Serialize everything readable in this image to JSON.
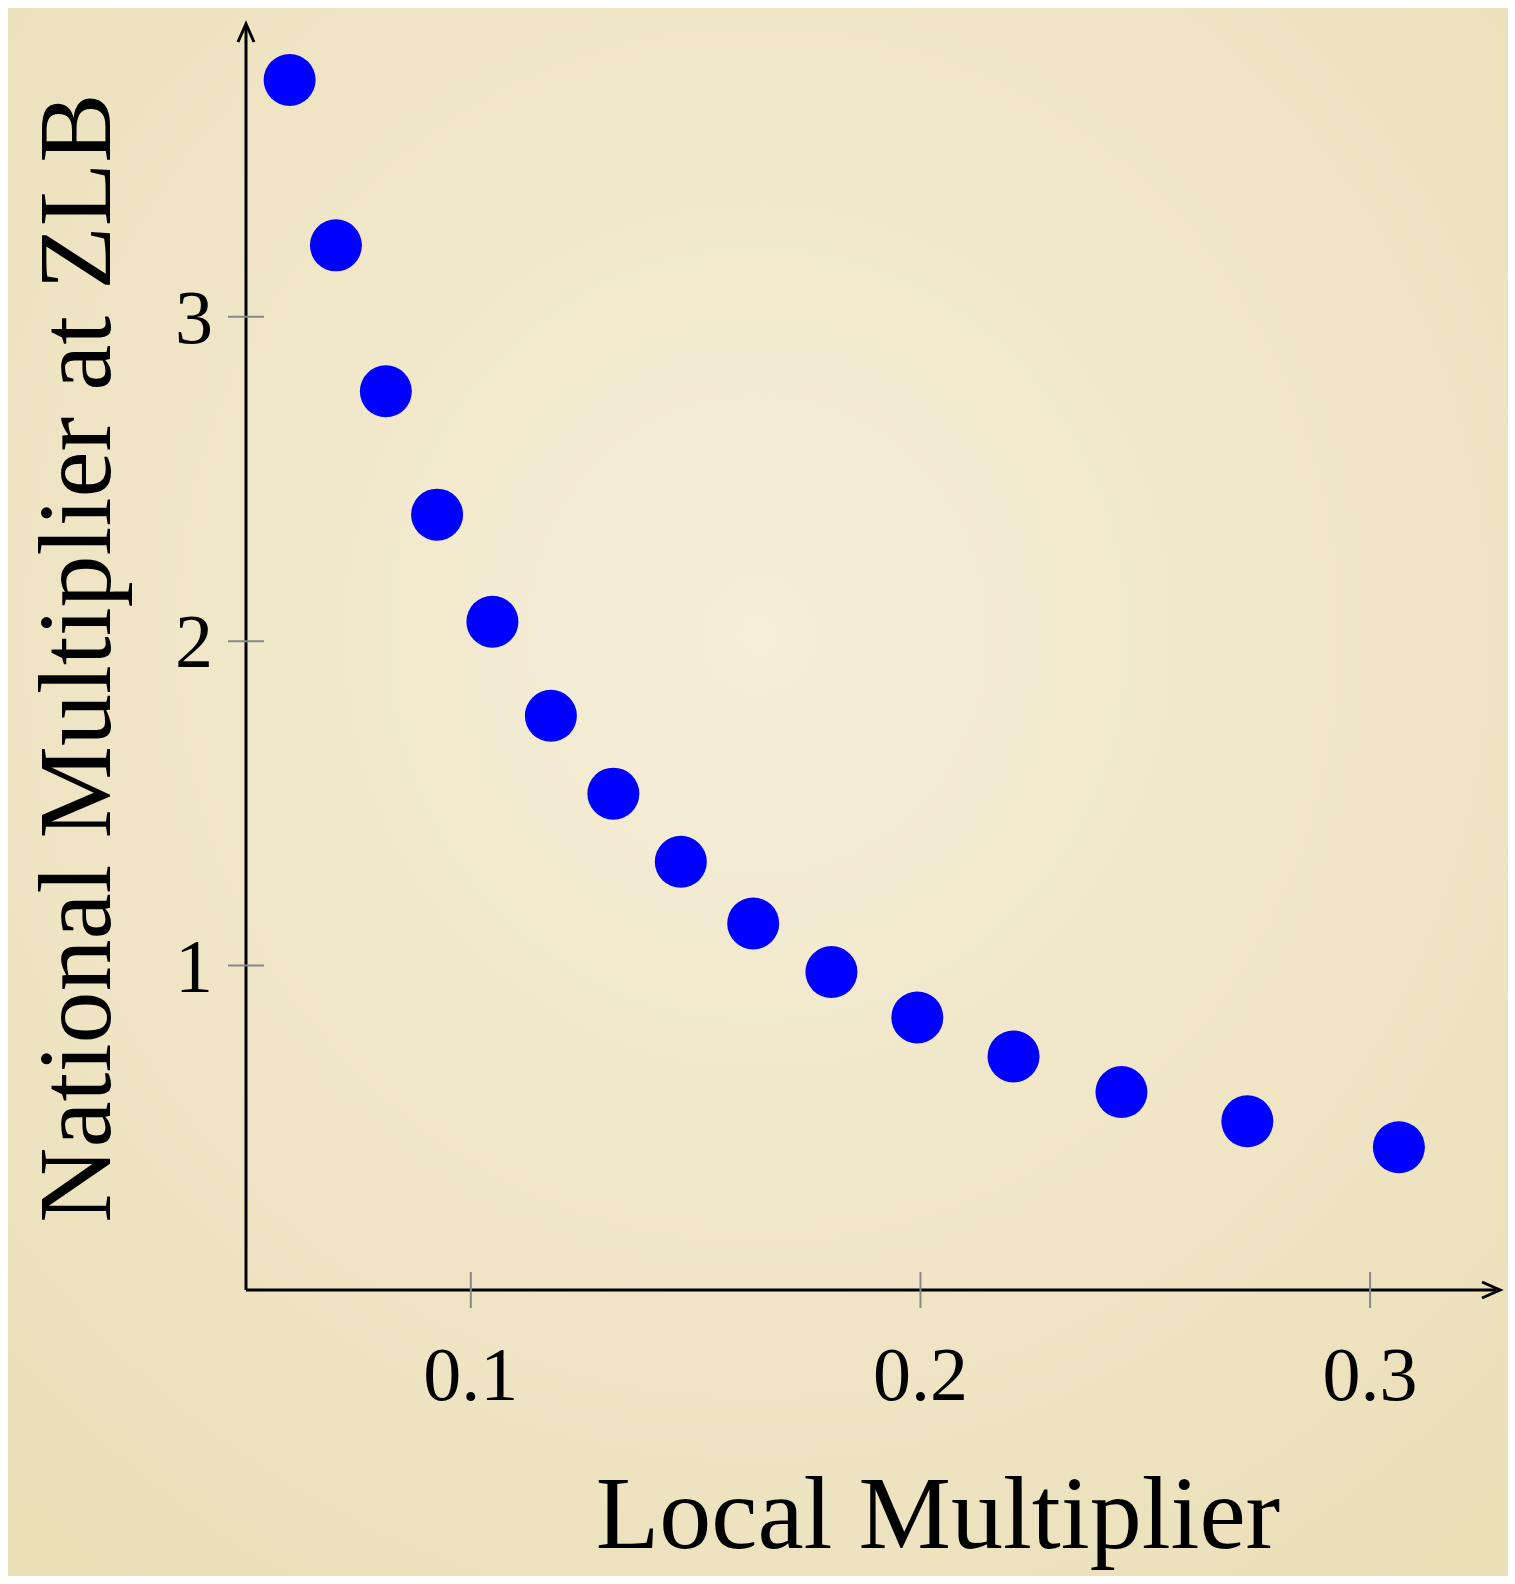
{
  "chart_data": {
    "type": "scatter",
    "xlabel": "Local Multiplier",
    "ylabel": "National Multiplier at ZLB",
    "x": [
      0.0597,
      0.07,
      0.0811,
      0.0925,
      0.1048,
      0.1178,
      0.1317,
      0.1467,
      0.1628,
      0.1802,
      0.1993,
      0.2207,
      0.2447,
      0.2727,
      0.3064
    ],
    "series": [
      {
        "color": "#0000ff",
        "values": [
          3.73,
          3.22,
          2.77,
          2.39,
          2.06,
          1.77,
          1.53,
          1.32,
          1.13,
          0.98,
          0.84,
          0.72,
          0.61,
          0.52,
          0.44
        ]
      }
    ],
    "xlim": [
      0.05,
      0.328
    ],
    "ylim": [
      0,
      3.89
    ],
    "xticks": [
      0.1,
      0.2,
      0.3
    ],
    "yticks": [
      1,
      2,
      3
    ],
    "marker": "circle",
    "grid": false
  }
}
